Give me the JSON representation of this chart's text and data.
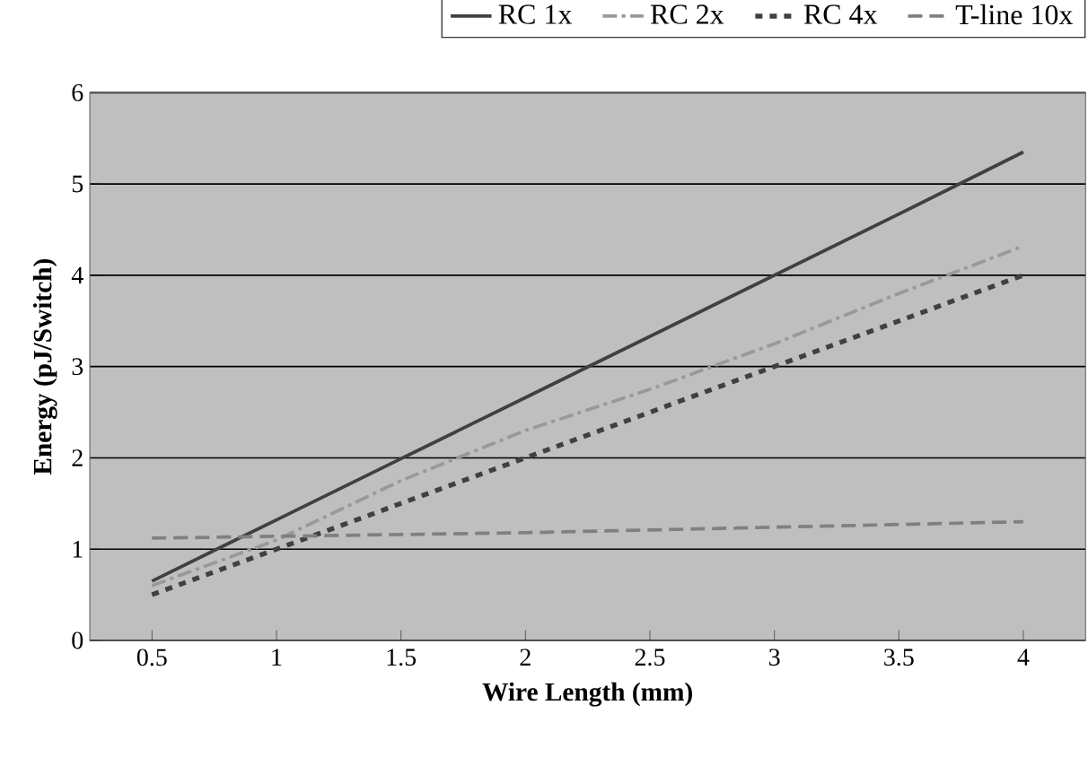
{
  "chart_data": {
    "type": "line",
    "xlabel": "Wire Length (mm)",
    "ylabel": "Energy (pJ/Switch)",
    "categories": [
      "0.5",
      "1",
      "1.5",
      "2",
      "2.5",
      "3",
      "3.5",
      "4"
    ],
    "series": [
      {
        "name": "RC 1x",
        "color": "#404040",
        "line_style": "solid",
        "values": [
          0.65,
          1.32,
          1.99,
          2.66,
          3.33,
          4.0,
          4.67,
          5.35
        ]
      },
      {
        "name": "RC 2x",
        "color": "#999999",
        "line_style": "dashdot",
        "values": [
          0.6,
          1.1,
          1.75,
          2.3,
          2.75,
          3.25,
          3.8,
          4.32
        ]
      },
      {
        "name": "RC 4x",
        "color": "#404040",
        "line_style": "dotted",
        "values": [
          0.5,
          1.0,
          1.5,
          2.0,
          2.5,
          3.0,
          3.5,
          4.0
        ]
      },
      {
        "name": "T-line 10x",
        "color": "#808080",
        "line_style": "dashed",
        "values": [
          1.12,
          1.14,
          1.16,
          1.18,
          1.21,
          1.24,
          1.27,
          1.3
        ]
      }
    ],
    "ylim": [
      0,
      6
    ],
    "yticks": [
      0,
      1,
      2,
      3,
      4,
      5,
      6
    ],
    "grid": "y",
    "legend": "top",
    "marker": "none"
  }
}
